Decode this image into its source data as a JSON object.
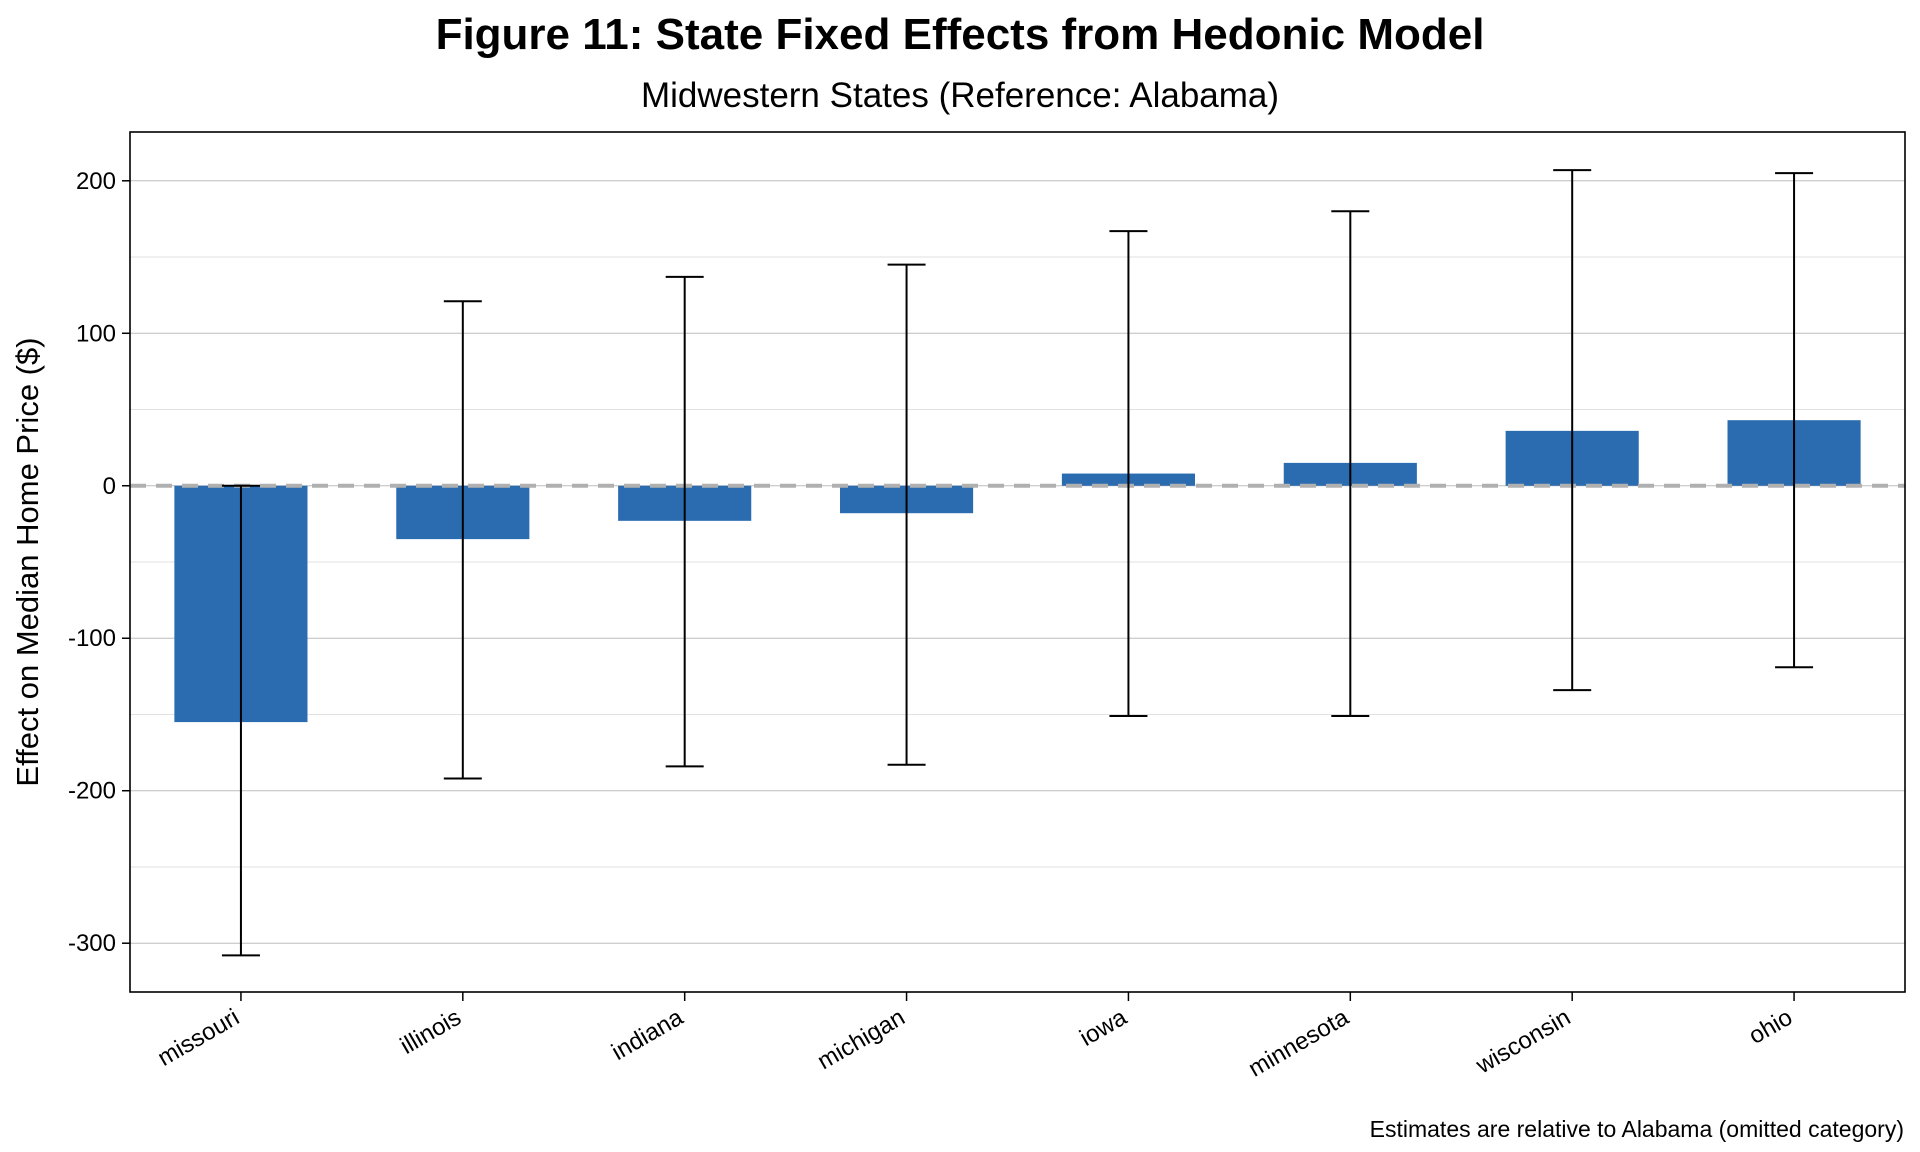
{
  "chart_data": {
    "type": "bar",
    "title": "Figure 11: State Fixed Effects from Hedonic Model",
    "subtitle": "Midwestern States (Reference: Alabama)",
    "xlabel": "",
    "ylabel": "Effect on Median Home Price ($)",
    "caption": "Estimates are relative to Alabama (omitted category)",
    "categories": [
      "missouri",
      "illinois",
      "indiana",
      "michigan",
      "iowa",
      "minnesota",
      "wisconsin",
      "ohio"
    ],
    "values": [
      -155,
      -35,
      -23,
      -18,
      8,
      15,
      36,
      43
    ],
    "error_low": [
      -308,
      -192,
      -184,
      -183,
      -151,
      -151,
      -134,
      -119
    ],
    "error_high": [
      0,
      121,
      137,
      145,
      167,
      180,
      207,
      205
    ],
    "ylim": [
      -332,
      232
    ],
    "yticks": [
      -300,
      -200,
      -100,
      0,
      100,
      200
    ],
    "ytick_labels": [
      "-300",
      "-200",
      "-100",
      "0",
      "100",
      "200"
    ],
    "reference_line": 0,
    "grid": true,
    "bar_color": "#2b6cb0",
    "error_color": "#000000",
    "reference_line_color": "#b0b0b0"
  }
}
